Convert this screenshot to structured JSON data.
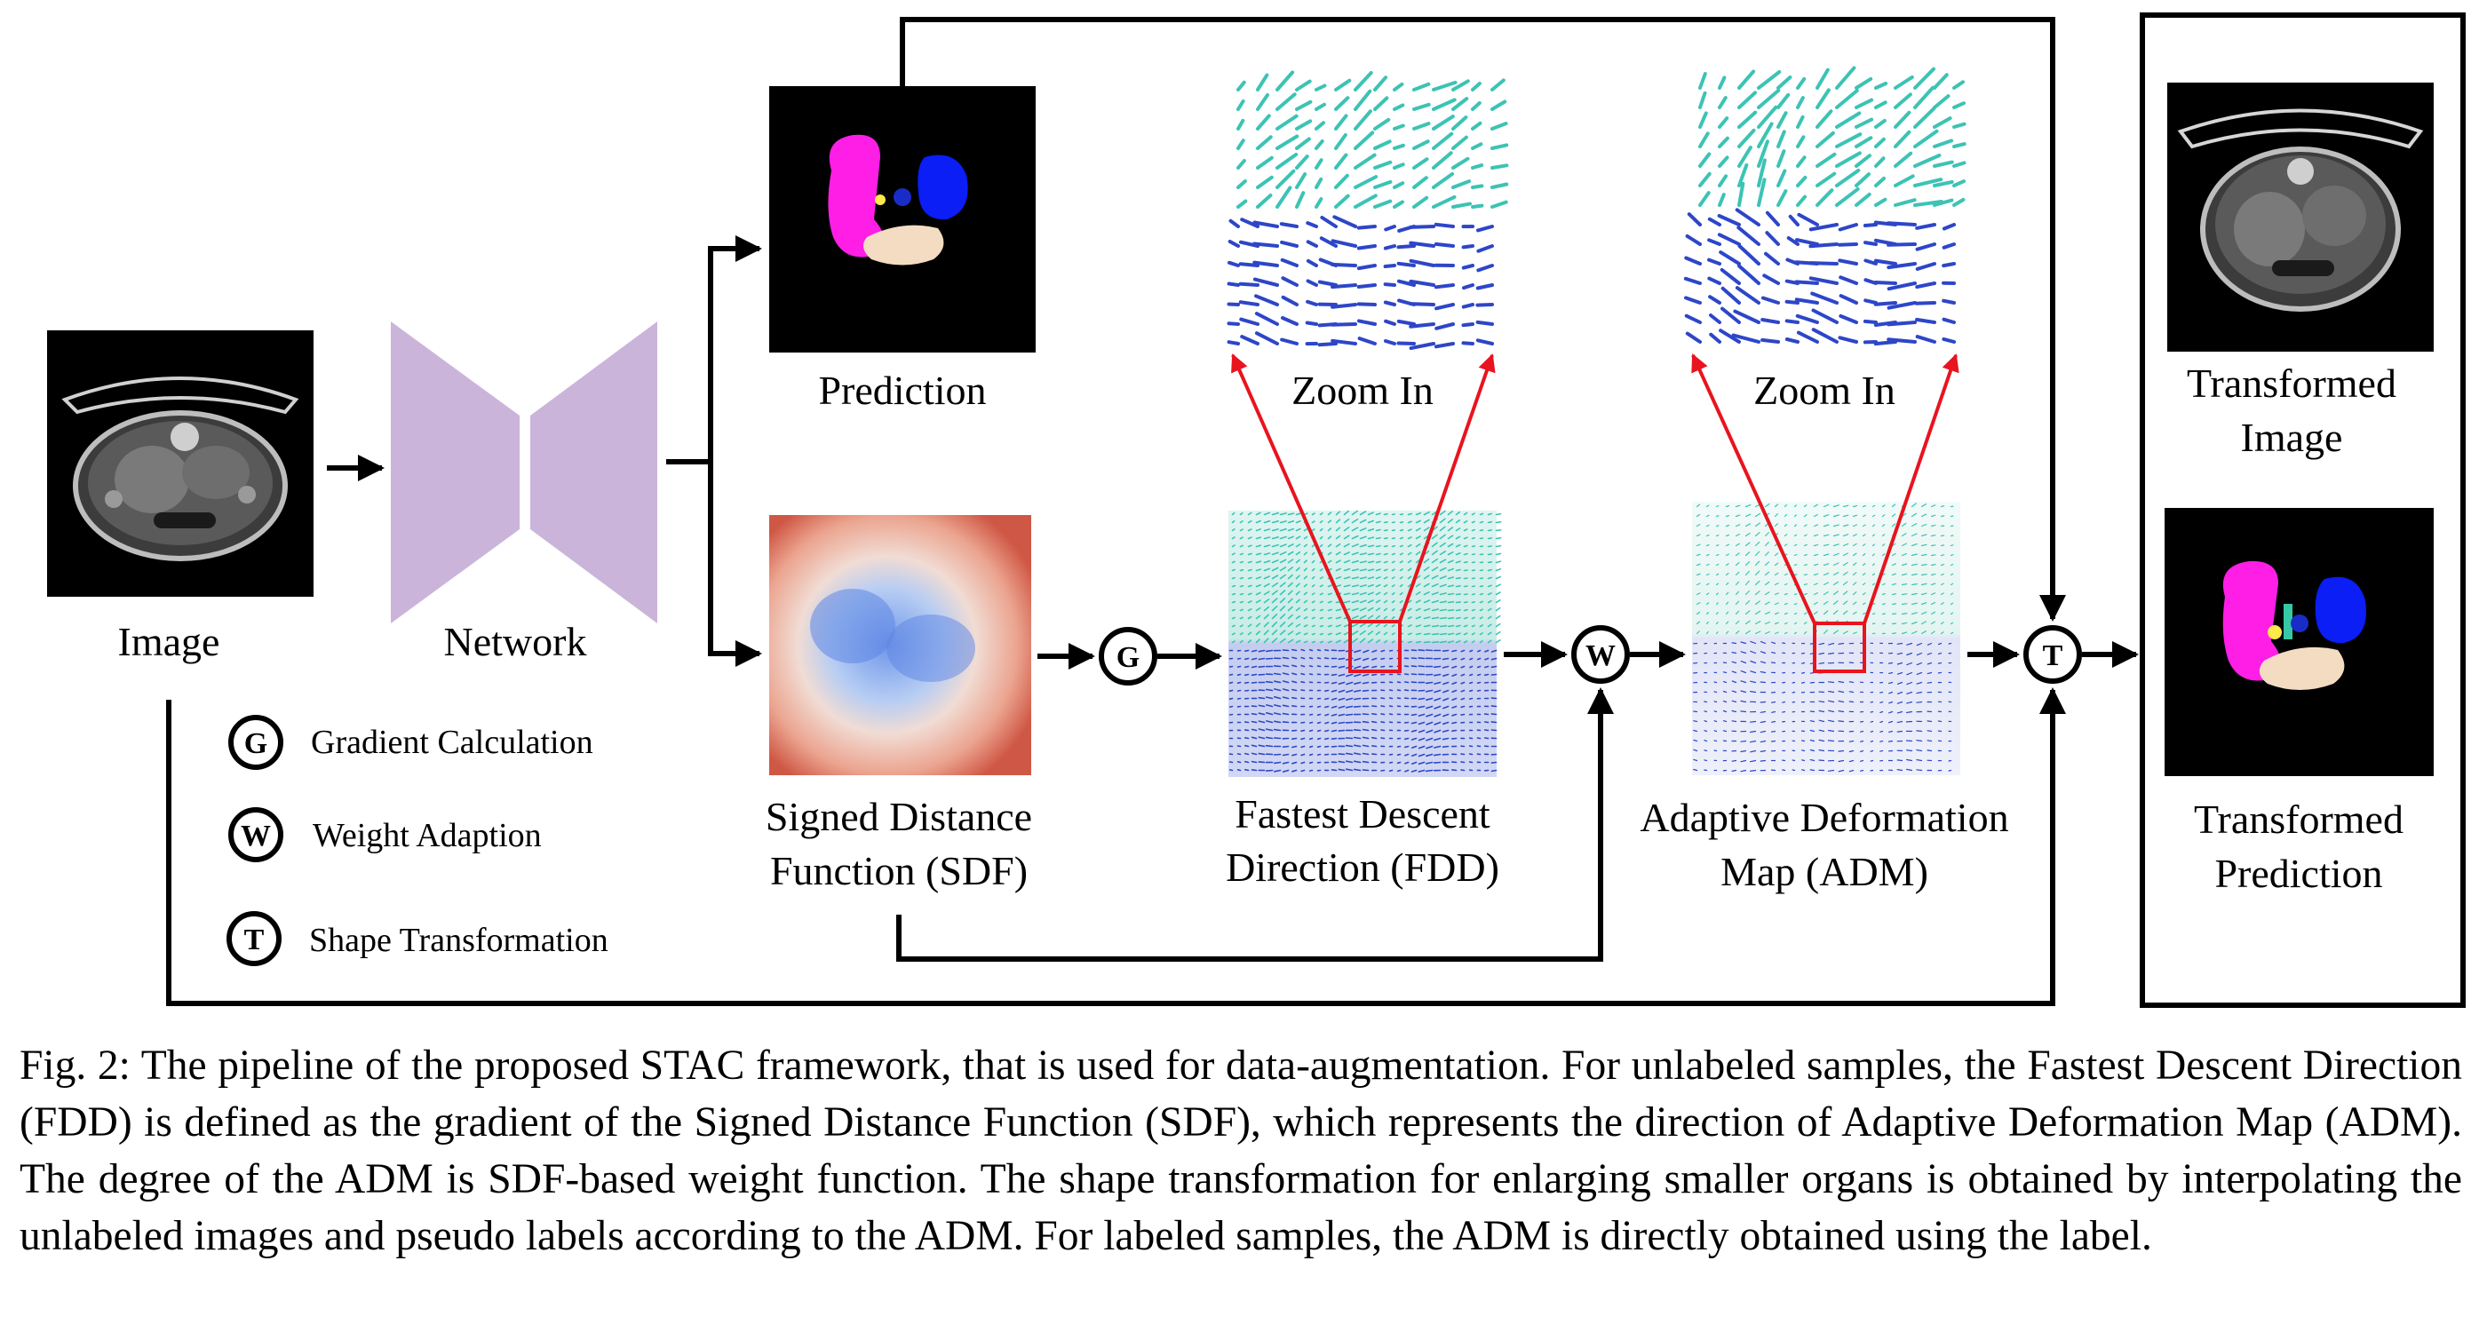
{
  "labels": {
    "image": "Image",
    "network": "Network",
    "prediction": "Prediction",
    "sdf_line1": "Signed Distance",
    "sdf_line2": "Function (SDF)",
    "fdd_line1": "Fastest Descent",
    "fdd_line2": "Direction (FDD)",
    "adm_line1": "Adaptive Deformation",
    "adm_line2": "Map (ADM)",
    "zoom_in_fdd": "Zoom In",
    "zoom_in_adm": "Zoom In",
    "transformed_image_line1": "Transformed",
    "transformed_image_line2": "Image",
    "transformed_prediction_line1": "Transformed",
    "transformed_prediction_line2": "Prediction"
  },
  "operators": {
    "gradient": "G",
    "weight": "W",
    "transform": "T"
  },
  "legend": {
    "gradient": "Gradient Calculation",
    "weight": "Weight Adaption",
    "transform": "Shape Transformation"
  },
  "caption": "Fig. 2: The pipeline of the proposed STAC framework, that is used for data-augmentation. For unlabeled samples, the Fastest Descent Direction (FDD) is defined as the gradient of the Signed Distance Function (SDF), which represents the direction of Adaptive Deformation Map (ADM). The degree of the ADM is SDF-based weight function. The shape transformation for enlarging smaller organs is obtained by interpolating the unlabeled images and pseudo labels according to the ADM. For labeled samples, the ADM is directly obtained using the label.",
  "colors": {
    "network": "#cbb4da",
    "zoom_lines": "#e8141e",
    "organ_magenta": "#ff1ee6",
    "organ_blue": "#0a1ef5",
    "organ_beige": "#f3dcc2",
    "arrow_teal": "#3cc3b4",
    "arrow_blue": "#2d46c8",
    "sdf_center": "#7aa2ee",
    "sdf_edge": "#d25f4e"
  }
}
